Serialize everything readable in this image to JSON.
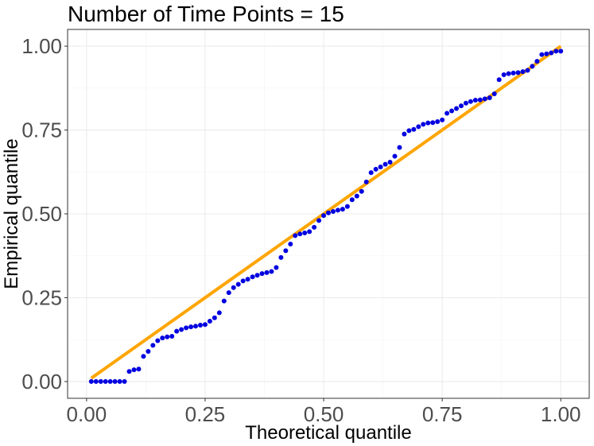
{
  "chart_data": {
    "type": "scatter",
    "title": "Number of Time Points = 15",
    "xlabel": "Theoretical quantile",
    "ylabel": "Empirical quantile",
    "xlim": [
      -0.04,
      1.06
    ],
    "ylim": [
      -0.05,
      1.05
    ],
    "x_ticks": [
      0,
      0.25,
      0.5,
      0.75,
      1
    ],
    "x_tick_labels": [
      "0.00",
      "0.25",
      "0.50",
      "0.75",
      "1.00"
    ],
    "y_ticks": [
      0,
      0.25,
      0.5,
      0.75,
      1
    ],
    "y_tick_labels": [
      "0.00",
      "0.25",
      "0.50",
      "0.75",
      "1.00"
    ],
    "grid": true,
    "reference_line": {
      "x": [
        0.01,
        1
      ],
      "y": [
        0.01,
        1
      ],
      "color": "#FFA500"
    },
    "point_color": "#0000E0",
    "x": [
      0.01,
      0.02,
      0.03,
      0.04,
      0.05,
      0.06,
      0.07,
      0.08,
      0.09,
      0.1,
      0.11,
      0.12,
      0.13,
      0.14,
      0.15,
      0.16,
      0.17,
      0.18,
      0.19,
      0.2,
      0.21,
      0.22,
      0.23,
      0.24,
      0.25,
      0.26,
      0.27,
      0.28,
      0.29,
      0.3,
      0.31,
      0.32,
      0.33,
      0.34,
      0.35,
      0.36,
      0.37,
      0.38,
      0.39,
      0.4,
      0.41,
      0.42,
      0.43,
      0.44,
      0.45,
      0.46,
      0.47,
      0.48,
      0.49,
      0.5,
      0.51,
      0.52,
      0.53,
      0.54,
      0.55,
      0.56,
      0.57,
      0.58,
      0.59,
      0.6,
      0.61,
      0.62,
      0.63,
      0.64,
      0.65,
      0.66,
      0.67,
      0.68,
      0.69,
      0.7,
      0.71,
      0.72,
      0.73,
      0.74,
      0.75,
      0.76,
      0.77,
      0.78,
      0.79,
      0.8,
      0.81,
      0.82,
      0.83,
      0.84,
      0.85,
      0.86,
      0.87,
      0.88,
      0.89,
      0.9,
      0.91,
      0.92,
      0.93,
      0.94,
      0.95,
      0.96,
      0.97,
      0.98,
      0.99,
      1.0
    ],
    "y": [
      0.0,
      0.0,
      0.0,
      0.0,
      0.0,
      0.0,
      0.0,
      0.0,
      0.03,
      0.035,
      0.037,
      0.075,
      0.09,
      0.108,
      0.122,
      0.13,
      0.133,
      0.135,
      0.15,
      0.155,
      0.16,
      0.163,
      0.165,
      0.168,
      0.17,
      0.18,
      0.19,
      0.205,
      0.24,
      0.265,
      0.28,
      0.29,
      0.3,
      0.305,
      0.312,
      0.317,
      0.322,
      0.325,
      0.328,
      0.34,
      0.37,
      0.39,
      0.41,
      0.435,
      0.44,
      0.443,
      0.447,
      0.46,
      0.48,
      0.495,
      0.503,
      0.507,
      0.511,
      0.514,
      0.522,
      0.542,
      0.553,
      0.567,
      0.595,
      0.623,
      0.633,
      0.64,
      0.648,
      0.654,
      0.672,
      0.698,
      0.738,
      0.748,
      0.752,
      0.76,
      0.767,
      0.771,
      0.772,
      0.775,
      0.78,
      0.8,
      0.807,
      0.814,
      0.822,
      0.83,
      0.835,
      0.839,
      0.84,
      0.843,
      0.846,
      0.858,
      0.9,
      0.915,
      0.918,
      0.92,
      0.921,
      0.924,
      0.928,
      0.94,
      0.955,
      0.975,
      0.977,
      0.98,
      0.985,
      0.985
    ]
  }
}
